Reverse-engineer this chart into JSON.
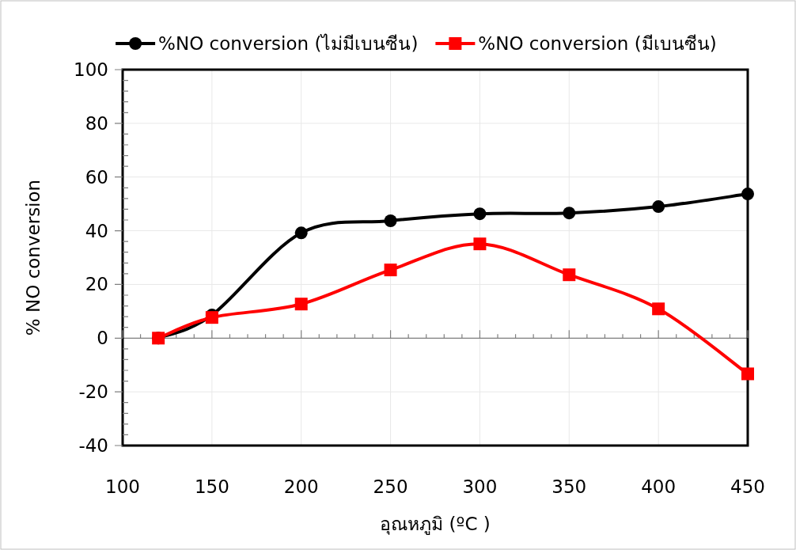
{
  "chart_data": {
    "type": "line",
    "xlabel": "อุณหภูมิ (ºC )",
    "ylabel": "% NO conversion",
    "x": [
      120,
      150,
      200,
      250,
      300,
      350,
      400,
      450
    ],
    "series": [
      {
        "name": "%NO conversion (ไม่มีเบนซีน)",
        "color": "#000000",
        "marker": "circle",
        "values": [
          0,
          8.6,
          39.2,
          43.7,
          46.3,
          46.6,
          49,
          53.7
        ]
      },
      {
        "name": "%NO conversion (มีเบนซีน)",
        "color": "#ff0000",
        "marker": "square",
        "values": [
          0,
          7.7,
          12.7,
          25.4,
          35.1,
          23.6,
          10.9,
          -13.3
        ]
      }
    ],
    "xlim": [
      100,
      450
    ],
    "xticks": [
      100,
      150,
      200,
      250,
      300,
      350,
      400,
      450
    ],
    "ylim": [
      -40,
      100
    ],
    "yticks": [
      -40,
      -20,
      0,
      20,
      40,
      60,
      80,
      100
    ],
    "grid": true,
    "legend": "top",
    "line_style": "solid"
  }
}
